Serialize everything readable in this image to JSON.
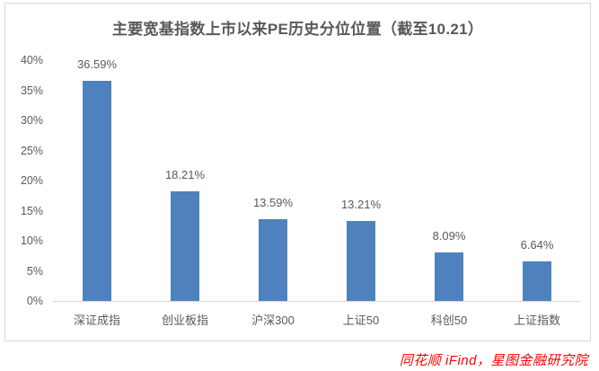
{
  "chart_data": {
    "type": "bar",
    "title": "主要宽基指数上市以来PE历史分位位置（截至10.21）",
    "categories": [
      "深证成指",
      "创业板指",
      "沪深300",
      "上证50",
      "科创50",
      "上证指数"
    ],
    "values": [
      36.59,
      18.21,
      13.59,
      13.21,
      8.09,
      6.64
    ],
    "data_labels": [
      "36.59%",
      "18.21%",
      "13.59%",
      "13.21%",
      "8.09%",
      "6.64%"
    ],
    "y_ticks": [
      {
        "label": "40%",
        "value": 40
      },
      {
        "label": "35%",
        "value": 35
      },
      {
        "label": "30%",
        "value": 30
      },
      {
        "label": "25%",
        "value": 25
      },
      {
        "label": "20%",
        "value": 20
      },
      {
        "label": "15%",
        "value": 15
      },
      {
        "label": "10%",
        "value": 10
      },
      {
        "label": "5%",
        "value": 5
      },
      {
        "label": "0%",
        "value": 0
      }
    ],
    "ylim": [
      0,
      40
    ],
    "xlabel": "",
    "ylabel": "",
    "grid": false,
    "legend_position": "none",
    "bar_color": "#4e81bd",
    "axis_color": "#d9d9d9",
    "text_color": "#595959"
  },
  "footer": {
    "source_text": "同花顺 iFind，星图金融研究院",
    "color": "#ff0000"
  }
}
